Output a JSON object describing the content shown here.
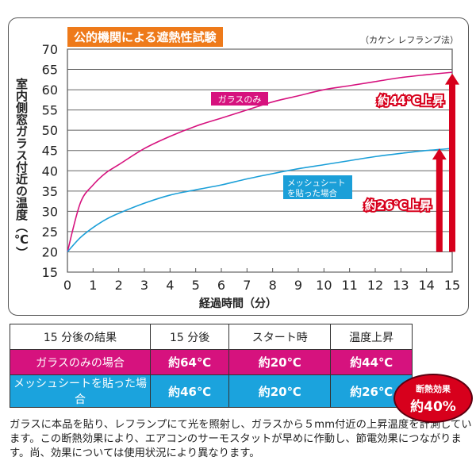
{
  "title": "公的機関による遮熱性試験",
  "method": "（カケン レフランプ法）",
  "chart_data": {
    "type": "line",
    "xlabel": "経過時間（分）",
    "ylabel": "室内側窓ガラス付近の温度（℃）",
    "xlim": [
      0,
      15
    ],
    "ylim": [
      15,
      70
    ],
    "xticks": [
      0,
      1,
      2,
      3,
      4,
      5,
      6,
      7,
      8,
      9,
      10,
      11,
      12,
      13,
      14,
      15
    ],
    "yticks": [
      15,
      20,
      25,
      30,
      35,
      40,
      45,
      50,
      55,
      60,
      65,
      70
    ],
    "grid": "horizontal",
    "x": [
      0,
      0.5,
      1,
      1.5,
      2,
      3,
      4,
      5,
      6,
      7,
      8,
      9,
      10,
      11,
      12,
      13,
      14,
      15
    ],
    "series": [
      {
        "name": "ガラスのみ",
        "color": "#d6127e",
        "values": [
          20,
          32,
          36.5,
          39.5,
          41.5,
          45.5,
          48.5,
          51,
          53,
          55,
          57,
          58.5,
          60,
          61,
          62,
          63,
          63.7,
          64.3
        ]
      },
      {
        "name": "メッシュシートを貼った場合",
        "color": "#1b9fd8",
        "values": [
          20,
          23.5,
          26,
          28,
          29.5,
          32,
          34,
          35.3,
          36.5,
          38,
          39.3,
          40.5,
          41.5,
          42.5,
          43.5,
          44.3,
          45,
          45.5
        ]
      }
    ],
    "annotations": [
      {
        "text": "約44℃上昇",
        "x": 15,
        "from": 20,
        "to": 64
      },
      {
        "text": "約26℃上昇",
        "x": 14.5,
        "from": 20,
        "to": 45.5
      }
    ],
    "arrow_color": "#d7001c"
  },
  "table": {
    "headers": [
      "15 分後の結果",
      "15 分後",
      "スタート時",
      "温度上昇"
    ],
    "rows": [
      [
        "ガラスのみの場合",
        "約64℃",
        "約20℃",
        "約44℃"
      ],
      [
        "メッシュシートを貼った場合",
        "約46℃",
        "約20℃",
        "約26℃"
      ]
    ]
  },
  "badge": {
    "line1": "断熱効果",
    "line2": "約40%"
  },
  "note": "ガラスに本品を貼り、レフランプにて光を照射し、ガラスから５mm付近の上昇温度を計測しています。この断熱効果により、エアコンのサーモスタットが早めに作動し、節電効果につながります。尚、効果については使用状況により異なります。"
}
